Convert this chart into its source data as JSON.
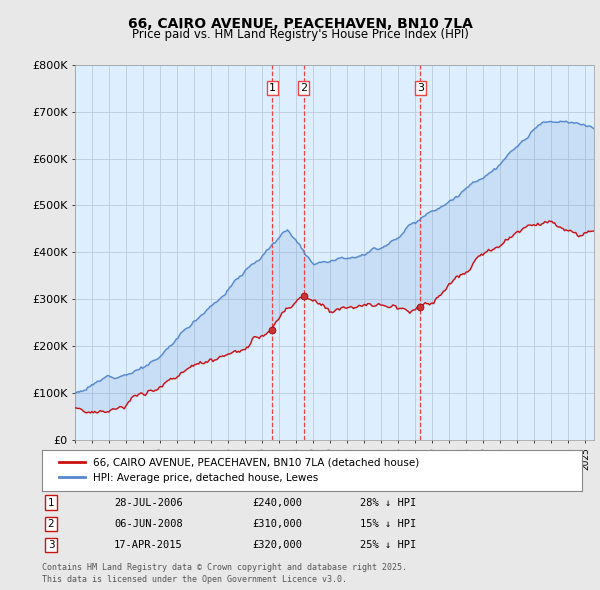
{
  "title": "66, CAIRO AVENUE, PEACEHAVEN, BN10 7LA",
  "subtitle": "Price paid vs. HM Land Registry's House Price Index (HPI)",
  "title_fontsize": 10,
  "subtitle_fontsize": 8.5,
  "background_color": "#e8e8e8",
  "plot_bg_color": "#ddeeff",
  "hpi_color": "#5588cc",
  "price_color": "#cc1111",
  "grid_color": "#bbccdd",
  "vline_color": "#ee4444",
  "ylim": [
    0,
    800000
  ],
  "yticks": [
    0,
    100000,
    200000,
    300000,
    400000,
    500000,
    600000,
    700000,
    800000
  ],
  "ytick_labels": [
    "£0",
    "£100K",
    "£200K",
    "£300K",
    "£400K",
    "£500K",
    "£600K",
    "£700K",
    "£800K"
  ],
  "xlim_start": 1995.0,
  "xlim_end": 2025.5,
  "legend_label_red": "66, CAIRO AVENUE, PEACEHAVEN, BN10 7LA (detached house)",
  "legend_label_blue": "HPI: Average price, detached house, Lewes",
  "sale_events": [
    {
      "label": "1",
      "year": 2006.58,
      "price": 240000,
      "pct": "28%",
      "date_str": "28-JUL-2006"
    },
    {
      "label": "2",
      "year": 2008.43,
      "price": 310000,
      "pct": "15%",
      "date_str": "06-JUN-2008"
    },
    {
      "label": "3",
      "year": 2015.29,
      "price": 320000,
      "pct": "25%",
      "date_str": "17-APR-2015"
    }
  ],
  "footer_line1": "Contains HM Land Registry data © Crown copyright and database right 2025.",
  "footer_line2": "This data is licensed under the Open Government Licence v3.0."
}
